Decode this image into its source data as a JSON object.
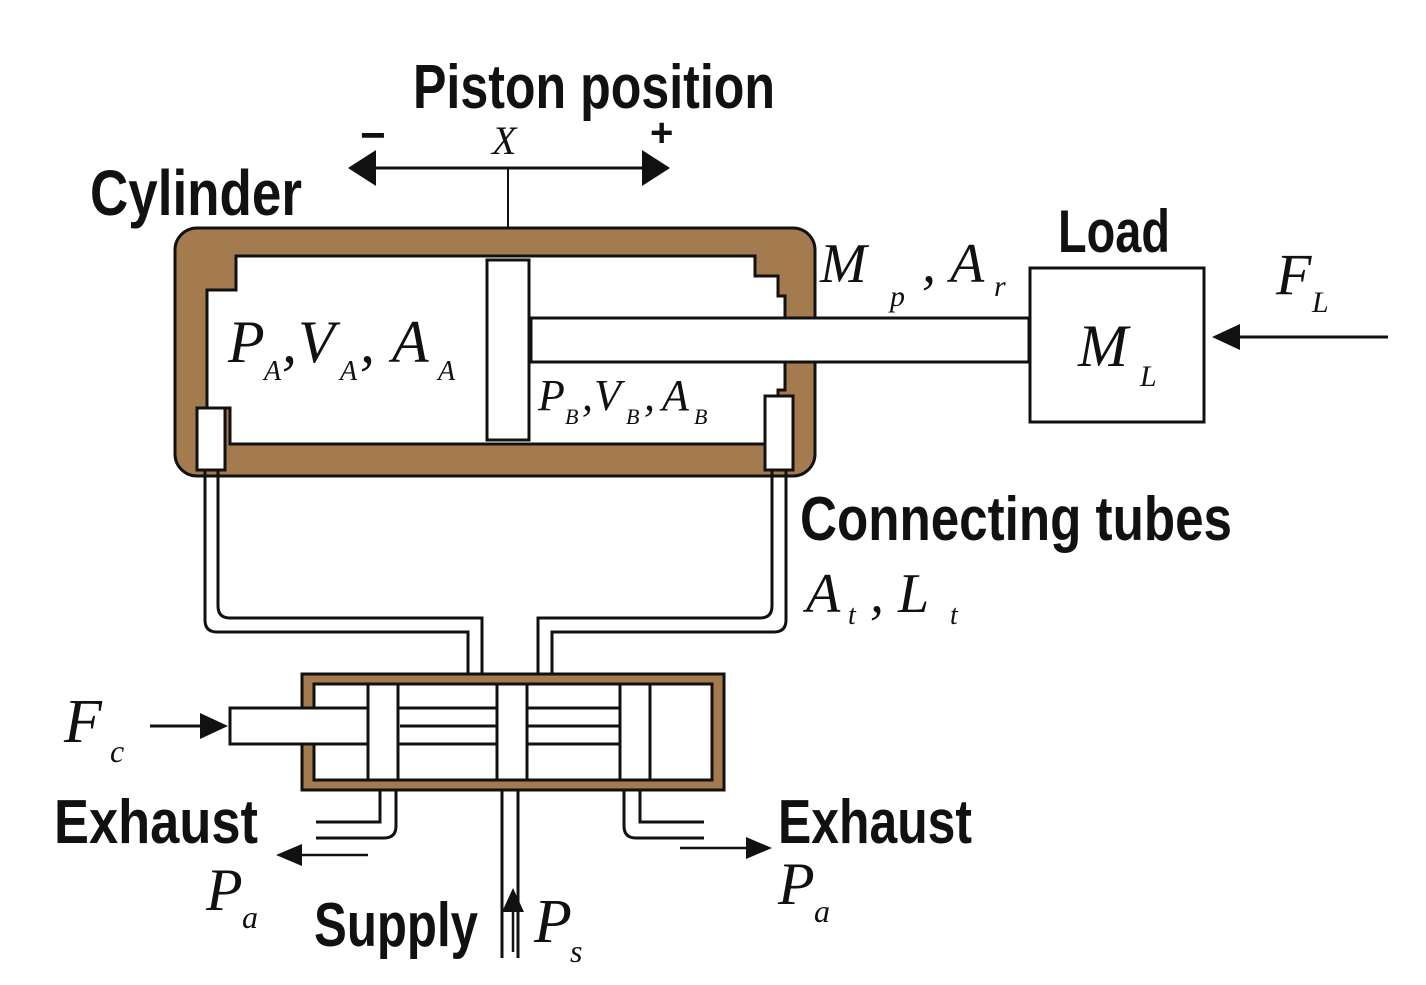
{
  "labels": {
    "piston_position": "Piston position",
    "cylinder": "Cylinder",
    "load": "Load",
    "connecting_tubes": "Connecting tubes",
    "exhaust_left": "Exhaust",
    "exhaust_right": "Exhaust",
    "supply": "Supply"
  },
  "symbols": {
    "minus": "−",
    "plus": "+",
    "x": "X",
    "chamber_a": {
      "p": "P",
      "p_sub": "A",
      "v": "V",
      "v_sub": "A",
      "a": "A",
      "a_sub": "A",
      "sep": ","
    },
    "chamber_b": {
      "p": "P",
      "p_sub": "B",
      "v": "V",
      "v_sub": "B",
      "a": "A",
      "a_sub": "B",
      "sep": ","
    },
    "mass_piston": {
      "m": "M",
      "m_sub": "p",
      "a": "A",
      "a_sub": "r",
      "sep": ","
    },
    "load_mass": {
      "m": "M",
      "m_sub": "L"
    },
    "load_force": {
      "f": "F",
      "f_sub": "L"
    },
    "tube": {
      "a": "A",
      "a_sub": "t",
      "l": "L",
      "l_sub": "t",
      "sep": ","
    },
    "control_force": {
      "f": "F",
      "f_sub": "c"
    },
    "exhaust_pressure_left": {
      "p": "P",
      "p_sub": "a"
    },
    "exhaust_pressure_right": {
      "p": "P",
      "p_sub": "a"
    },
    "supply_pressure": {
      "p": "P",
      "p_sub": "s"
    }
  },
  "colors": {
    "cylinder_wall": "#a47b4f",
    "outline": "#111111",
    "background": "#ffffff"
  }
}
